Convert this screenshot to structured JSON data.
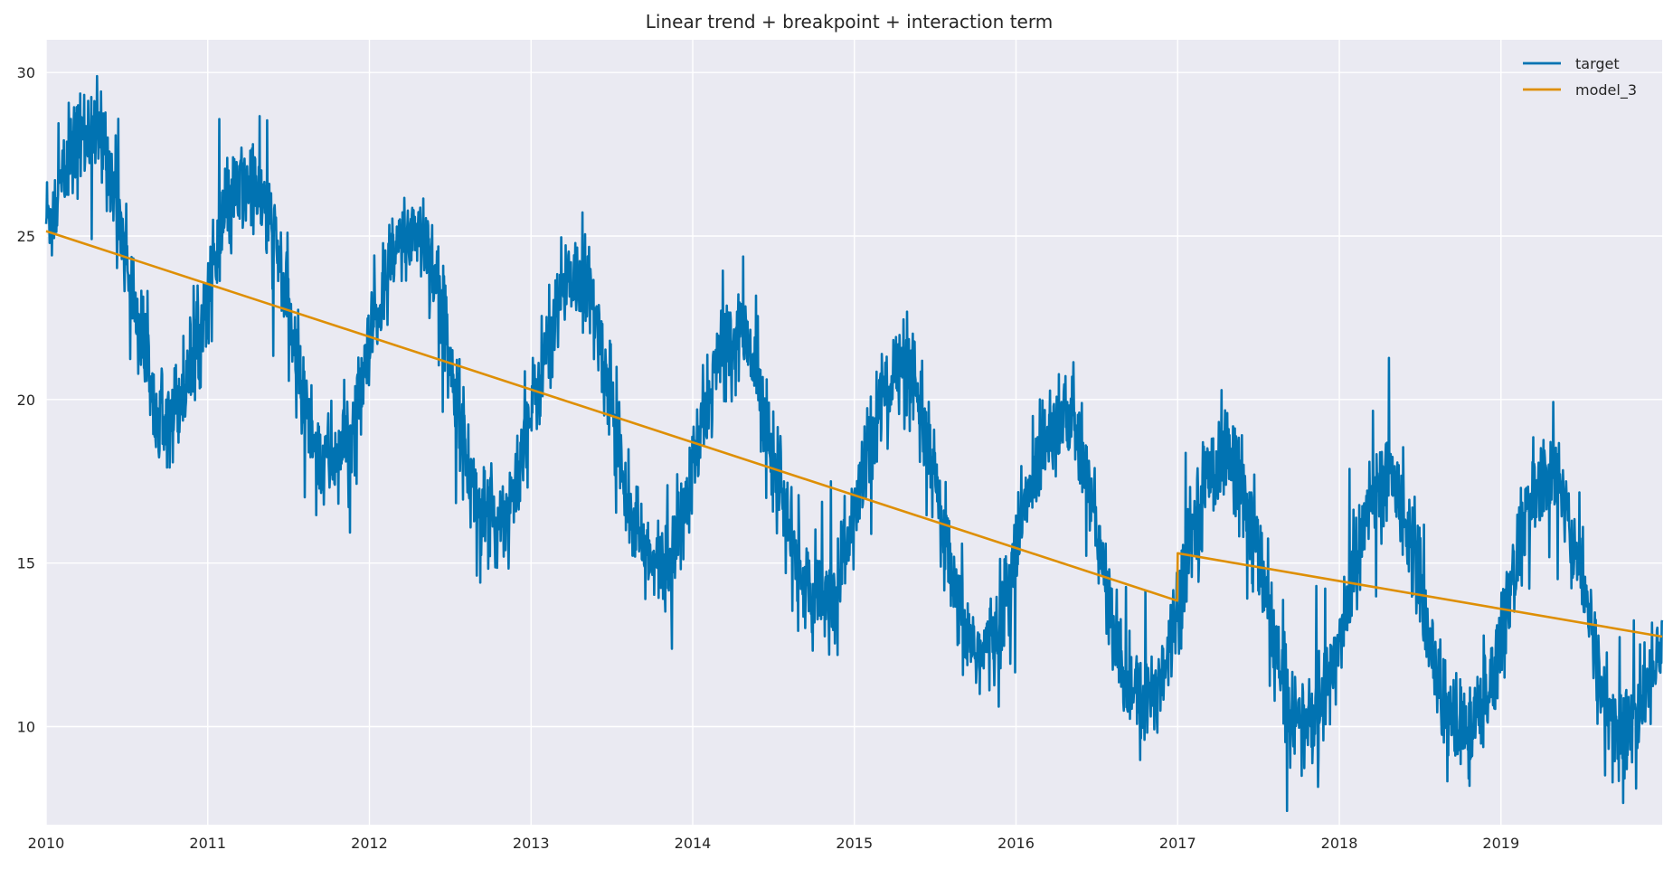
{
  "chart_data": {
    "type": "line",
    "title": "Linear trend + breakpoint + interaction term",
    "xlabel": "",
    "ylabel": "",
    "x_range": [
      "2010-01-01",
      "2019-12-31"
    ],
    "xlim": [
      2010.0,
      2019.997
    ],
    "ylim": [
      7.0,
      31.0
    ],
    "x_ticks": [
      "2010",
      "2011",
      "2012",
      "2013",
      "2014",
      "2015",
      "2016",
      "2017",
      "2018",
      "2019"
    ],
    "y_ticks": [
      10,
      15,
      20,
      25,
      30
    ],
    "grid": true,
    "legend_position": "top-right",
    "background_color": "#eaeaf2",
    "grid_color": "#ffffff",
    "series": [
      {
        "name": "target",
        "color": "#0173b2",
        "frequency": "daily",
        "x_dates_monthly": [
          "2010-01",
          "2010-02",
          "2010-03",
          "2010-04",
          "2010-05",
          "2010-06",
          "2010-07",
          "2010-08",
          "2010-09",
          "2010-10",
          "2010-11",
          "2010-12",
          "2011-01",
          "2011-02",
          "2011-03",
          "2011-04",
          "2011-05",
          "2011-06",
          "2011-07",
          "2011-08",
          "2011-09",
          "2011-10",
          "2011-11",
          "2011-12",
          "2012-01",
          "2012-02",
          "2012-03",
          "2012-04",
          "2012-05",
          "2012-06",
          "2012-07",
          "2012-08",
          "2012-09",
          "2012-10",
          "2012-11",
          "2012-12",
          "2013-01",
          "2013-02",
          "2013-03",
          "2013-04",
          "2013-05",
          "2013-06",
          "2013-07",
          "2013-08",
          "2013-09",
          "2013-10",
          "2013-11",
          "2013-12",
          "2014-01",
          "2014-02",
          "2014-03",
          "2014-04",
          "2014-05",
          "2014-06",
          "2014-07",
          "2014-08",
          "2014-09",
          "2014-10",
          "2014-11",
          "2014-12",
          "2015-01",
          "2015-02",
          "2015-03",
          "2015-04",
          "2015-05",
          "2015-06",
          "2015-07",
          "2015-08",
          "2015-09",
          "2015-10",
          "2015-11",
          "2015-12",
          "2016-01",
          "2016-02",
          "2016-03",
          "2016-04",
          "2016-05",
          "2016-06",
          "2016-07",
          "2016-08",
          "2016-09",
          "2016-10",
          "2016-11",
          "2016-12",
          "2017-01",
          "2017-02",
          "2017-03",
          "2017-04",
          "2017-05",
          "2017-06",
          "2017-07",
          "2017-08",
          "2017-09",
          "2017-10",
          "2017-11",
          "2017-12",
          "2018-01",
          "2018-02",
          "2018-03",
          "2018-04",
          "2018-05",
          "2018-06",
          "2018-07",
          "2018-08",
          "2018-09",
          "2018-10",
          "2018-11",
          "2018-12",
          "2019-01",
          "2019-02",
          "2019-03",
          "2019-04",
          "2019-05",
          "2019-06",
          "2019-07",
          "2019-08",
          "2019-09",
          "2019-10",
          "2019-11",
          "2019-12"
        ],
        "values_monthly_mean": [
          25.6,
          27.0,
          27.9,
          28.3,
          27.8,
          25.6,
          23.3,
          21.2,
          19.9,
          19.6,
          20.7,
          22.0,
          24.1,
          25.6,
          26.4,
          26.6,
          25.7,
          24.0,
          21.6,
          19.4,
          18.1,
          18.2,
          18.8,
          20.3,
          22.4,
          23.9,
          24.8,
          25.3,
          24.7,
          22.6,
          20.3,
          17.6,
          16.4,
          16.2,
          16.9,
          18.4,
          20.4,
          22.1,
          23.5,
          23.8,
          23.2,
          21.1,
          19.0,
          16.6,
          15.2,
          14.8,
          15.2,
          16.6,
          18.7,
          20.6,
          21.7,
          22.1,
          21.4,
          19.5,
          17.5,
          15.4,
          14.2,
          13.6,
          14.1,
          15.4,
          17.4,
          19.2,
          20.5,
          20.9,
          20.4,
          18.6,
          16.4,
          13.9,
          12.7,
          12.2,
          12.7,
          14.2,
          16.3,
          18.0,
          19.2,
          19.6,
          19.1,
          17.3,
          14.9,
          12.3,
          11.1,
          10.6,
          11.2,
          12.6,
          14.8,
          16.6,
          17.8,
          18.3,
          17.9,
          16.4,
          14.3,
          11.8,
          10.5,
          10.0,
          10.4,
          11.6,
          13.6,
          15.5,
          16.9,
          17.6,
          17.3,
          15.6,
          13.4,
          11.1,
          10.0,
          9.8,
          10.3,
          11.6,
          13.8,
          15.7,
          17.0,
          17.7,
          17.4,
          15.7,
          13.6,
          11.2,
          10.0,
          9.9,
          10.5,
          12.3
        ]
      },
      {
        "name": "model_3",
        "color": "#de8f05",
        "segments": [
          {
            "x": [
              "2010-01-01",
              "2016-12-31"
            ],
            "y": [
              25.15,
              13.85
            ]
          },
          {
            "x": [
              "2017-01-01",
              "2019-12-31"
            ],
            "y": [
              15.3,
              12.75
            ]
          }
        ]
      }
    ]
  }
}
